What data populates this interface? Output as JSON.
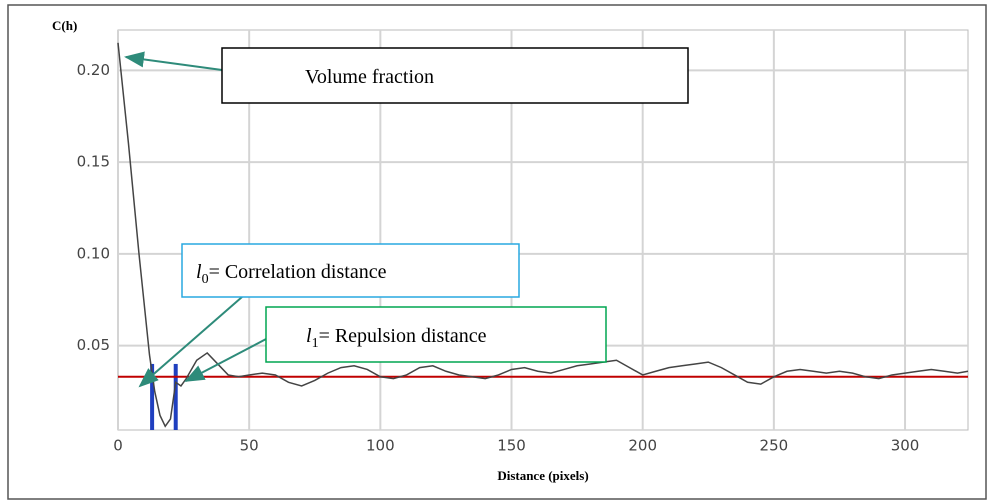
{
  "chart_data": {
    "type": "line",
    "y_label": "C(h)",
    "x_label": "Distance (pixels)",
    "x": [
      0,
      4,
      8,
      12,
      14,
      16,
      18,
      20,
      22,
      24,
      26,
      30,
      34,
      38,
      42,
      46,
      50,
      55,
      60,
      65,
      70,
      75,
      80,
      85,
      90,
      95,
      100,
      105,
      110,
      115,
      120,
      125,
      130,
      135,
      140,
      145,
      150,
      155,
      160,
      165,
      170,
      175,
      180,
      185,
      190,
      195,
      200,
      205,
      210,
      215,
      220,
      225,
      230,
      235,
      240,
      245,
      250,
      255,
      260,
      265,
      270,
      275,
      280,
      285,
      290,
      295,
      300,
      305,
      310,
      315,
      320,
      324
    ],
    "series": [
      {
        "color": "#444444",
        "values": [
          0.215,
          0.16,
          0.1,
          0.045,
          0.025,
          0.012,
          0.006,
          0.01,
          0.03,
          0.028,
          0.032,
          0.042,
          0.046,
          0.04,
          0.034,
          0.033,
          0.034,
          0.035,
          0.034,
          0.03,
          0.028,
          0.031,
          0.035,
          0.038,
          0.039,
          0.037,
          0.033,
          0.032,
          0.034,
          0.038,
          0.039,
          0.036,
          0.034,
          0.033,
          0.032,
          0.034,
          0.037,
          0.038,
          0.036,
          0.035,
          0.037,
          0.039,
          0.04,
          0.041,
          0.042,
          0.038,
          0.034,
          0.036,
          0.038,
          0.039,
          0.04,
          0.041,
          0.038,
          0.034,
          0.03,
          0.029,
          0.033,
          0.036,
          0.037,
          0.036,
          0.035,
          0.036,
          0.035,
          0.033,
          0.032,
          0.034,
          0.035,
          0.036,
          0.037,
          0.036,
          0.035,
          0.036
        ]
      }
    ],
    "reference_line": {
      "value": 0.033,
      "color": "#c00000"
    },
    "markers": {
      "color": "#1f3fbf",
      "x": [
        13,
        22
      ],
      "values": [
        0.04,
        0.04
      ]
    },
    "xlim": [
      0,
      324
    ],
    "ylim": [
      0.004,
      0.222
    ],
    "xticks": [
      0,
      50,
      100,
      150,
      200,
      250,
      300
    ],
    "yticks": [
      {
        "value": 0.05,
        "label": "0.05"
      },
      {
        "value": 0.1,
        "label": "0.10"
      },
      {
        "value": 0.15,
        "label": "0.15"
      },
      {
        "value": 0.2,
        "label": "0.20"
      }
    ],
    "grid": true,
    "annotations": {
      "volume": "Volume fraction",
      "l0": {
        "symbol": "l",
        "sub": "0",
        "text": "= Correlation distance"
      },
      "l1": {
        "symbol": "l",
        "sub": "1",
        "text": "= Repulsion distance"
      }
    }
  }
}
